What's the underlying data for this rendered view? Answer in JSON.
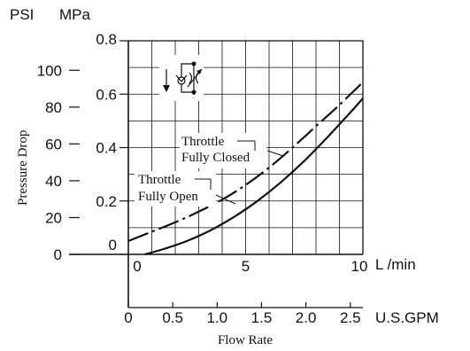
{
  "chart_data": {
    "type": "line",
    "units": {
      "psi": "PSI",
      "mpa": "MPa",
      "lmin": "L /min",
      "gpm": "U.S.GPM"
    },
    "ylabel": "Pressure Drop",
    "xlabel": "Flow Rate",
    "ylim_mpa": [
      0,
      0.8
    ],
    "xlim_lmin": [
      0,
      10
    ],
    "grid": true,
    "psi_ticks": [
      "0",
      "20",
      "40",
      "60",
      "80",
      "100"
    ],
    "mpa_ticks": [
      "0",
      "0.2",
      "0.4",
      "0.6",
      "0.8"
    ],
    "lmin_ticks": [
      "0",
      "5",
      "10"
    ],
    "gpm_ticks": [
      "0",
      "0.5",
      "1.0",
      "1.5",
      "2.0",
      "2.5"
    ],
    "series": [
      {
        "name": "Throttle Fully Closed",
        "label_lines": [
          "Throttle",
          "Fully Closed"
        ],
        "style": "dash-dot",
        "x": [
          0,
          1,
          2,
          3,
          4,
          5,
          6,
          7,
          8,
          9,
          10
        ],
        "y": [
          0.05,
          0.085,
          0.12,
          0.16,
          0.205,
          0.26,
          0.325,
          0.4,
          0.48,
          0.56,
          0.645
        ]
      },
      {
        "name": "Throttle Fully Open",
        "label_lines": [
          "Throttle",
          "Fully Open"
        ],
        "style": "solid",
        "x": [
          0.7,
          1.5,
          2.5,
          3.5,
          4.5,
          5.5,
          6.5,
          7.5,
          8.5,
          9.5,
          10
        ],
        "y": [
          0.0,
          0.02,
          0.05,
          0.09,
          0.14,
          0.2,
          0.27,
          0.35,
          0.44,
          0.535,
          0.585
        ]
      }
    ]
  },
  "symbol": {
    "icon": "throttle-check-valve-symbol-icon"
  }
}
